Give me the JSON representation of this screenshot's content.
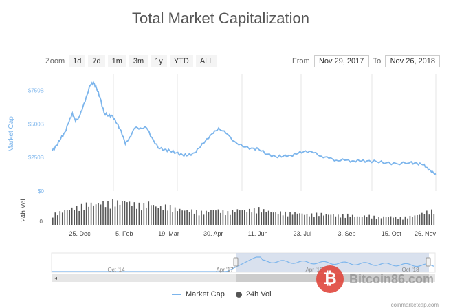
{
  "title": "Total Market Capitalization",
  "zoom": {
    "label": "Zoom",
    "buttons": [
      "1d",
      "7d",
      "1m",
      "3m",
      "1y",
      "YTD",
      "ALL"
    ]
  },
  "range": {
    "from_label": "From",
    "from_value": "Nov 29, 2017",
    "to_label": "To",
    "to_value": "Nov 26, 2018"
  },
  "legend": {
    "market_cap": "Market Cap",
    "vol": "24h Vol"
  },
  "credits": "coinmarketcap.com",
  "watermark": {
    "text": "Bitcoin86.com",
    "logo_glyph": "₿"
  },
  "colors": {
    "line": "#7cb5ec",
    "volume": "#555555",
    "navigator_fill": "#cfd9ea",
    "grid": "#e6e6e6"
  },
  "chart_data": {
    "type": "line",
    "title": "Total Market Capitalization",
    "x_tick_labels": [
      "25. Dec",
      "5. Feb",
      "19. Mar",
      "30. Apr",
      "11. Jun",
      "23. Jul",
      "3. Sep",
      "15. Oct",
      "26. Nov"
    ],
    "xlim": [
      "2017-11-29",
      "2018-11-26"
    ],
    "market_cap": {
      "ylabel": "Market Cap",
      "y_tick_labels": [
        "$0",
        "$250B",
        "$500B",
        "$750B"
      ],
      "ylim": [
        0,
        870
      ],
      "unit": "B USD",
      "series": [
        {
          "name": "Market Cap",
          "x": [
            "2017-11-29",
            "2017-12-03",
            "2017-12-07",
            "2017-12-11",
            "2017-12-15",
            "2017-12-18",
            "2017-12-21",
            "2017-12-24",
            "2017-12-27",
            "2017-12-31",
            "2018-01-04",
            "2018-01-07",
            "2018-01-10",
            "2018-01-13",
            "2018-01-17",
            "2018-01-21",
            "2018-01-25",
            "2018-01-29",
            "2018-02-02",
            "2018-02-06",
            "2018-02-10",
            "2018-02-15",
            "2018-02-20",
            "2018-02-26",
            "2018-03-03",
            "2018-03-09",
            "2018-03-15",
            "2018-03-20",
            "2018-03-26",
            "2018-04-01",
            "2018-04-06",
            "2018-04-12",
            "2018-04-18",
            "2018-04-24",
            "2018-04-30",
            "2018-05-05",
            "2018-05-12",
            "2018-05-20",
            "2018-05-28",
            "2018-06-05",
            "2018-06-12",
            "2018-06-20",
            "2018-06-28",
            "2018-07-05",
            "2018-07-12",
            "2018-07-19",
            "2018-07-26",
            "2018-08-03",
            "2018-08-10",
            "2018-08-17",
            "2018-08-24",
            "2018-09-01",
            "2018-09-08",
            "2018-09-15",
            "2018-09-22",
            "2018-10-01",
            "2018-10-10",
            "2018-10-20",
            "2018-11-01",
            "2018-11-08",
            "2018-11-14",
            "2018-11-18",
            "2018-11-22",
            "2018-11-26"
          ],
          "values": [
            300,
            340,
            390,
            440,
            520,
            580,
            520,
            550,
            600,
            700,
            790,
            810,
            760,
            700,
            580,
            560,
            560,
            500,
            450,
            350,
            400,
            470,
            470,
            470,
            400,
            320,
            310,
            300,
            285,
            270,
            265,
            285,
            330,
            390,
            430,
            470,
            430,
            370,
            330,
            320,
            310,
            275,
            255,
            260,
            265,
            280,
            300,
            285,
            260,
            245,
            230,
            230,
            225,
            225,
            225,
            220,
            210,
            205,
            210,
            210,
            195,
            175,
            140,
            130
          ]
        }
      ]
    },
    "volume": {
      "ylabel": "24h Vol",
      "y_tick_labels": [
        "0"
      ],
      "series": [
        {
          "name": "24h Vol",
          "values": [
            22,
            26,
            30,
            34,
            36,
            40,
            44,
            42,
            46,
            44,
            48,
            46,
            50,
            44,
            42,
            40,
            46,
            38,
            36,
            40,
            34,
            32,
            30,
            30,
            28,
            26,
            30,
            32,
            28,
            26,
            30,
            32,
            30,
            32,
            34,
            30,
            28,
            26,
            26,
            24,
            26,
            24,
            22,
            22,
            24,
            22,
            22,
            20,
            20,
            22,
            18,
            18,
            20,
            18,
            16,
            18,
            18,
            16,
            16,
            18,
            20,
            24,
            28,
            30
          ]
        }
      ]
    },
    "navigator": {
      "x_tick_labels": [
        "Oct '14",
        "Apr '17",
        "Apr '18",
        "Oct '18"
      ],
      "selected_range": [
        "2017-11-29",
        "2018-11-26"
      ]
    }
  }
}
